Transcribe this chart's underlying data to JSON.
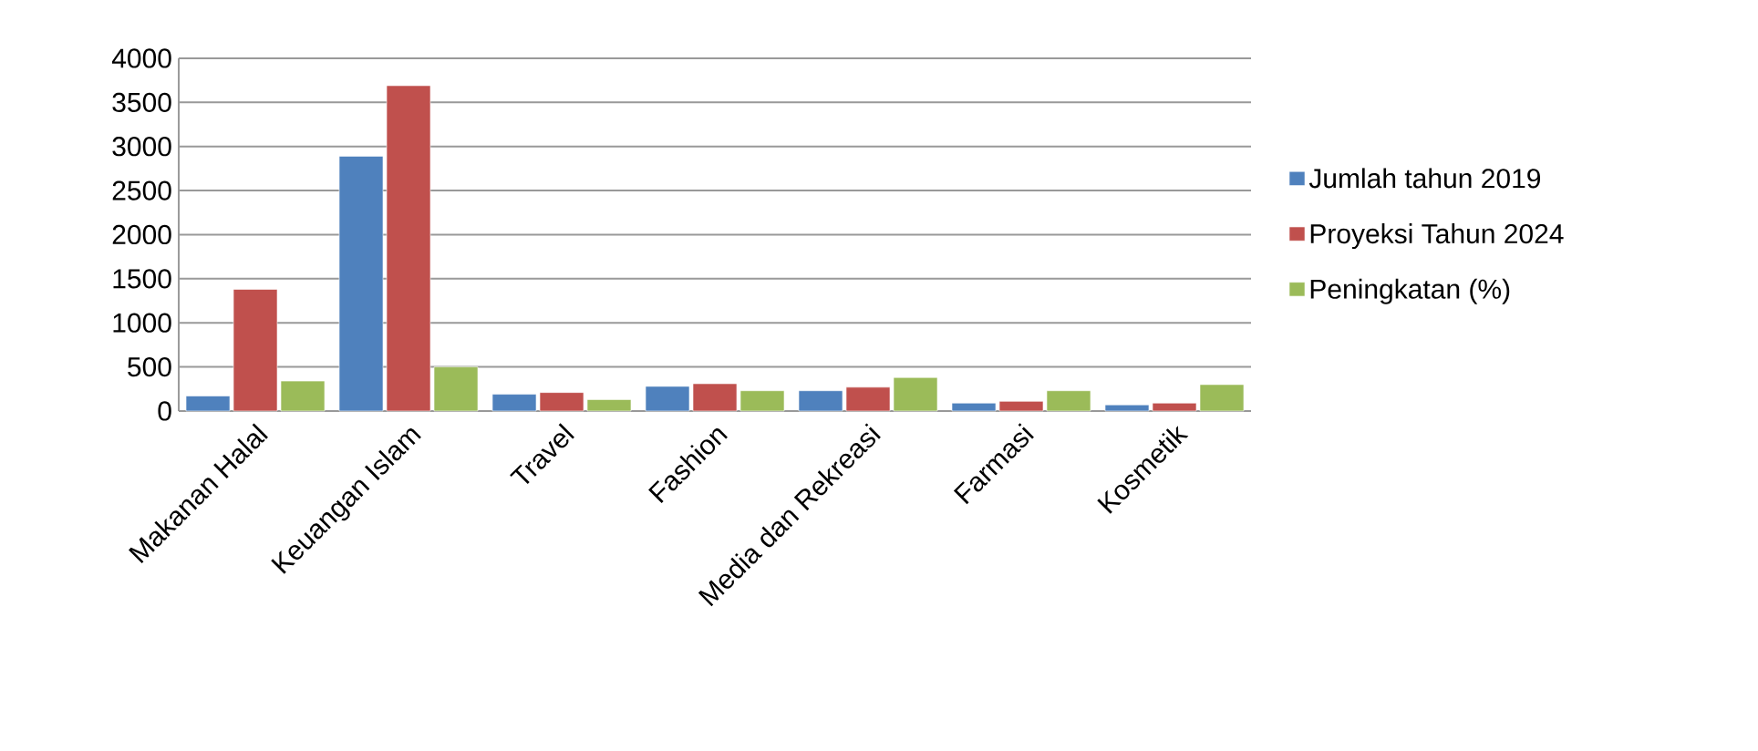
{
  "chart_data": {
    "type": "bar",
    "categories": [
      "Makanan Halal",
      "Keuangan Islam",
      "Travel",
      "Fashion",
      "Media dan Rekreasi",
      "Farmasi",
      "Kosmetik"
    ],
    "series": [
      {
        "name": "Jumlah tahun 2019",
        "color": "#4f81bd",
        "values": [
          170,
          2890,
          190,
          280,
          230,
          90,
          70
        ]
      },
      {
        "name": "Proyeksi Tahun 2024",
        "color": "#c0504d",
        "values": [
          1380,
          3690,
          210,
          310,
          270,
          110,
          90
        ]
      },
      {
        "name": "Peningkatan (%)",
        "color": "#9bbb59",
        "values": [
          340,
          500,
          130,
          230,
          380,
          230,
          300
        ]
      }
    ],
    "ylim": [
      0,
      4000
    ],
    "yticks": [
      0,
      500,
      1000,
      1500,
      2000,
      2500,
      3000,
      3500,
      4000
    ],
    "grid": "y",
    "legend": "right"
  }
}
